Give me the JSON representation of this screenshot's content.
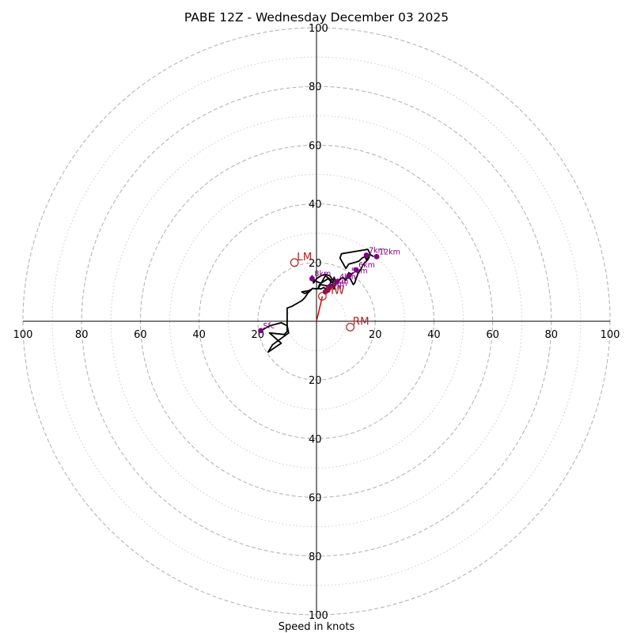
{
  "chart_data": {
    "type": "hodograph",
    "title": "PABE 12Z - Wednesday December 03 2025",
    "xlabel": "Speed in knots",
    "range": [
      -100,
      100
    ],
    "ring_major": [
      20,
      40,
      60,
      80,
      100
    ],
    "ring_minor": [
      10,
      30,
      50,
      70,
      90
    ],
    "x_ticks": [
      {
        "value": -100,
        "label": "100"
      },
      {
        "value": -80,
        "label": "80"
      },
      {
        "value": -60,
        "label": "60"
      },
      {
        "value": -40,
        "label": "40"
      },
      {
        "value": -20,
        "label": "20"
      },
      {
        "value": 20,
        "label": "20"
      },
      {
        "value": 40,
        "label": "40"
      },
      {
        "value": 60,
        "label": "60"
      },
      {
        "value": 80,
        "label": "80"
      },
      {
        "value": 100,
        "label": "100"
      }
    ],
    "y_ticks": [
      {
        "value": 100,
        "label": "100"
      },
      {
        "value": 80,
        "label": "80"
      },
      {
        "value": 60,
        "label": "60"
      },
      {
        "value": 40,
        "label": "40"
      },
      {
        "value": 20,
        "label": "20"
      },
      {
        "value": -20,
        "label": "20"
      },
      {
        "value": -40,
        "label": "40"
      },
      {
        "value": -60,
        "label": "60"
      },
      {
        "value": -80,
        "label": "80"
      },
      {
        "value": -100,
        "label": "100"
      }
    ],
    "hodograph_trace": [
      [
        -19,
        -3.2
      ],
      [
        -16,
        -1.6
      ],
      [
        -12,
        -0.5
      ],
      [
        -10,
        -1.5
      ],
      [
        -9.5,
        -4
      ],
      [
        -15,
        -8
      ],
      [
        -16.5,
        -10.5
      ],
      [
        -12,
        -7.5
      ],
      [
        -16,
        -4
      ],
      [
        -11,
        -4.5
      ],
      [
        -10,
        -3.5
      ],
      [
        -10,
        4.5
      ],
      [
        -8.5,
        5
      ],
      [
        -5,
        7
      ],
      [
        -4,
        8
      ],
      [
        -3,
        9.5
      ],
      [
        -2.5,
        10.5
      ],
      [
        -1.5,
        11
      ],
      [
        -2,
        10.5
      ],
      [
        -5,
        10
      ],
      [
        -4,
        9.5
      ],
      [
        -2.5,
        10
      ],
      [
        -1.3,
        11.2
      ],
      [
        0,
        11
      ],
      [
        0.5,
        11.2
      ],
      [
        1.5,
        11
      ],
      [
        2.5,
        11.5
      ],
      [
        4,
        10
      ],
      [
        3,
        11
      ],
      [
        4.5,
        12.2
      ],
      [
        5,
        14
      ],
      [
        3,
        15.5
      ],
      [
        0.5,
        11
      ],
      [
        1,
        12.5
      ],
      [
        2.5,
        12.3
      ],
      [
        4,
        12
      ],
      [
        5.3,
        12.5
      ],
      [
        6,
        11
      ],
      [
        6.5,
        13.5
      ],
      [
        6,
        15
      ],
      [
        5.5,
        13
      ],
      [
        4,
        14.5
      ],
      [
        1.5,
        13
      ],
      [
        0,
        13.5
      ],
      [
        -1.5,
        14.5
      ],
      [
        -1.5,
        15.5
      ],
      [
        -1,
        13
      ],
      [
        0,
        14.5
      ],
      [
        1.5,
        15.5
      ],
      [
        3,
        16
      ],
      [
        4.5,
        15.5
      ],
      [
        6,
        13.5
      ],
      [
        7.5,
        14
      ],
      [
        9,
        15
      ],
      [
        10,
        14
      ],
      [
        11,
        16.5
      ],
      [
        12,
        16
      ],
      [
        12.5,
        16.5
      ],
      [
        11.5,
        15.5
      ],
      [
        10.5,
        15
      ],
      [
        11.5,
        14.5
      ],
      [
        12.5,
        12.5
      ],
      [
        13,
        13
      ],
      [
        13.5,
        14.5
      ],
      [
        14.2,
        16.5
      ],
      [
        15,
        17.5
      ],
      [
        16,
        19.5
      ],
      [
        17.5,
        21
      ],
      [
        18,
        22
      ],
      [
        17,
        21
      ],
      [
        16.5,
        22
      ],
      [
        15.5,
        21.5
      ],
      [
        14.5,
        20.5
      ],
      [
        13,
        20
      ],
      [
        11,
        19.5
      ],
      [
        10,
        18
      ],
      [
        8,
        21.5
      ],
      [
        8.5,
        23
      ],
      [
        17.5,
        24.5
      ],
      [
        18.5,
        22.5
      ],
      [
        17,
        22.7
      ],
      [
        18.7,
        22.5
      ],
      [
        19.5,
        22
      ]
    ],
    "height_markers": [
      {
        "label": "Sfc",
        "u": -19,
        "v": -3.2
      },
      {
        "label": "1km",
        "u": 3,
        "v": 10
      },
      {
        "label": "2km",
        "u": 4,
        "v": 11.2
      },
      {
        "label": "3km",
        "u": 4.5,
        "v": 11.8
      },
      {
        "label": "4km",
        "u": 7,
        "v": 13.5
      },
      {
        "label": "5km",
        "u": 11,
        "v": 15.5
      },
      {
        "label": "6km",
        "u": 13.5,
        "v": 17.5
      },
      {
        "label": "7km",
        "u": 17,
        "v": 22.5
      },
      {
        "label": "8km",
        "u": -1.5,
        "v": 14.5
      },
      {
        "label": "12km",
        "u": 20.5,
        "v": 22
      }
    ],
    "storm_motion": [
      {
        "label": "LM",
        "u": -7.5,
        "v": 20
      },
      {
        "label": "RM",
        "u": 11.5,
        "v": -2
      },
      {
        "label": "MW",
        "u": 2,
        "v": 8.5
      }
    ],
    "mean_wind_vector": {
      "u": 2,
      "v": 8.5
    },
    "colors": {
      "trace": "#000000",
      "height_marker": "#800080",
      "storm_motion": "#b22222",
      "mean_wind_vector": "#dd0000",
      "ring_major": "#b5b5b5",
      "ring_minor": "#cccccc",
      "axis": "#000000"
    }
  }
}
